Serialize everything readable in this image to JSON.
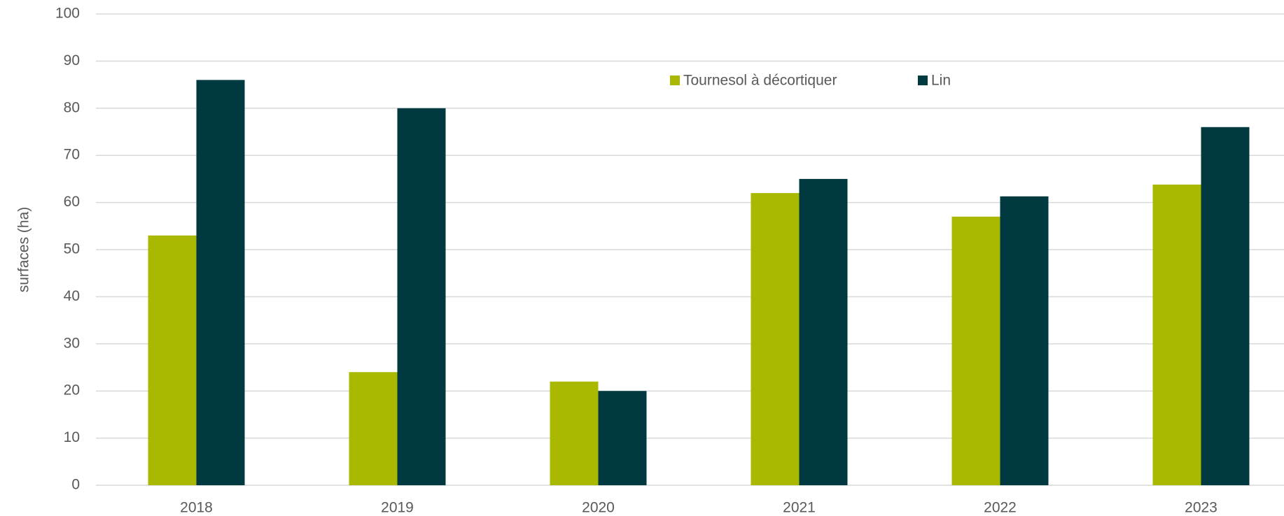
{
  "chart_data": {
    "type": "bar",
    "y_label": "surfaces (ha)",
    "categories": [
      "2018",
      "2019",
      "2020",
      "2021",
      "2022",
      "2023"
    ],
    "series": [
      {
        "name": "Tournesol à décortiquer",
        "color": "#a9b800",
        "values": [
          53,
          24,
          22,
          62,
          57,
          63.8
        ]
      },
      {
        "name": "Lin",
        "color": "#003a40",
        "values": [
          86,
          80,
          20,
          65,
          61.3,
          76
        ]
      }
    ],
    "ylim": [
      0,
      100
    ],
    "yticks": [
      0,
      10,
      20,
      30,
      40,
      50,
      60,
      70,
      80,
      90,
      100
    ],
    "grid": true,
    "legend": "top"
  }
}
